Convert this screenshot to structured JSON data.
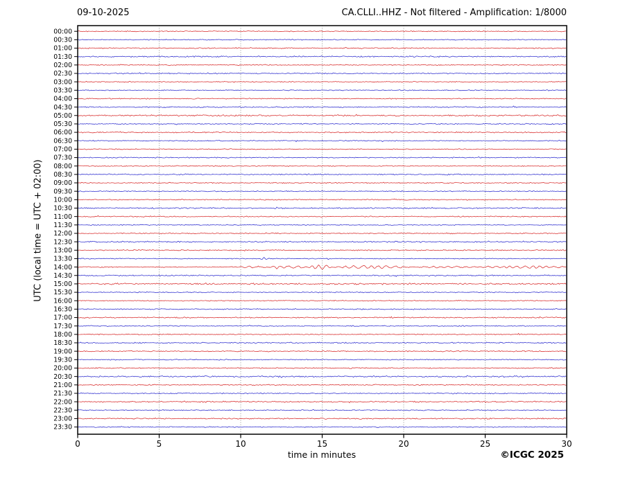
{
  "header": {
    "date": "09-10-2025",
    "title": "CA.CLLI..HHZ - Not filtered - Amplification: 1/8000"
  },
  "footer": {
    "copyright": "©ICGC 2025"
  },
  "axes": {
    "y_label": "UTC (local time = UTC + 02:00)",
    "x_label": "time in minutes",
    "x_ticks": [
      0,
      5,
      10,
      15,
      20,
      25,
      30
    ],
    "x_range": [
      0,
      30
    ],
    "gridlines_minutes": [
      5,
      10,
      15,
      20,
      25
    ],
    "grid_style": "dotted"
  },
  "chart_data": {
    "type": "line",
    "title": "CA.CLLI..HHZ - Not filtered - Amplification: 1/8000",
    "subtitle_date": "09-10-2025",
    "xlabel": "time in minutes",
    "ylabel": "UTC (local time = UTC + 02:00)",
    "x_range_minutes": [
      0,
      30
    ],
    "row_interval_minutes": 30,
    "legend": "none",
    "trace_colors": {
      "red": "#d62020",
      "blue": "#2222cc"
    },
    "grid_color": "#888888",
    "rows": [
      {
        "label": "00:00",
        "color": "red",
        "noise": 0.7
      },
      {
        "label": "00:30",
        "color": "blue",
        "noise": 0.7
      },
      {
        "label": "01:00",
        "color": "red",
        "noise": 0.9
      },
      {
        "label": "01:30",
        "color": "blue",
        "noise": 1.0
      },
      {
        "label": "02:00",
        "color": "red",
        "noise": 0.75
      },
      {
        "label": "02:30",
        "color": "blue",
        "noise": 0.9
      },
      {
        "label": "03:00",
        "color": "red",
        "noise": 0.7
      },
      {
        "label": "03:30",
        "color": "blue",
        "noise": 0.7
      },
      {
        "label": "04:00",
        "color": "red",
        "noise": 0.75
      },
      {
        "label": "04:30",
        "color": "blue",
        "noise": 0.9
      },
      {
        "label": "05:00",
        "color": "red",
        "noise": 1.1
      },
      {
        "label": "05:30",
        "color": "blue",
        "noise": 0.8
      },
      {
        "label": "06:00",
        "color": "red",
        "noise": 0.9
      },
      {
        "label": "06:30",
        "color": "blue",
        "noise": 0.75
      },
      {
        "label": "07:00",
        "color": "red",
        "noise": 0.7
      },
      {
        "label": "07:30",
        "color": "blue",
        "noise": 0.8
      },
      {
        "label": "08:00",
        "color": "red",
        "noise": 0.75
      },
      {
        "label": "08:30",
        "color": "blue",
        "noise": 0.9
      },
      {
        "label": "09:00",
        "color": "red",
        "noise": 0.8
      },
      {
        "label": "09:30",
        "color": "blue",
        "noise": 0.7
      },
      {
        "label": "10:00",
        "color": "red",
        "noise": 0.75
      },
      {
        "label": "10:30",
        "color": "blue",
        "noise": 1.0
      },
      {
        "label": "11:00",
        "color": "red",
        "noise": 0.8
      },
      {
        "label": "11:30",
        "color": "blue",
        "noise": 0.7
      },
      {
        "label": "12:00",
        "color": "red",
        "noise": 0.75
      },
      {
        "label": "12:30",
        "color": "blue",
        "noise": 1.0
      },
      {
        "label": "13:00",
        "color": "red",
        "noise": 0.8
      },
      {
        "label": "13:30",
        "color": "blue",
        "noise": 0.7,
        "events": [
          {
            "start": 11.2,
            "end": 11.8,
            "amp": 1.7,
            "period": 0.28
          }
        ]
      },
      {
        "label": "14:00",
        "color": "red",
        "noise": 0.7,
        "events": [
          {
            "start": 9.6,
            "end": 11.6,
            "amp": 1.1,
            "period": 0.55
          },
          {
            "start": 11.6,
            "end": 14.1,
            "amp": 1.7,
            "period": 0.5
          },
          {
            "start": 14.1,
            "end": 15.6,
            "amp": 3.0,
            "period": 0.42
          },
          {
            "start": 15.6,
            "end": 20.4,
            "amp": 2.0,
            "period": 0.5
          },
          {
            "start": 20.4,
            "end": 24.4,
            "amp": 0.9,
            "period": 0.5
          },
          {
            "start": 24.4,
            "end": 30.0,
            "amp": 1.5,
            "period": 0.45
          }
        ]
      },
      {
        "label": "14:30",
        "color": "blue",
        "noise": 0.95
      },
      {
        "label": "15:00",
        "color": "red",
        "noise": 1.15
      },
      {
        "label": "15:30",
        "color": "blue",
        "noise": 0.75
      },
      {
        "label": "16:00",
        "color": "red",
        "noise": 0.75
      },
      {
        "label": "16:30",
        "color": "blue",
        "noise": 0.8
      },
      {
        "label": "17:00",
        "color": "red",
        "noise": 0.9
      },
      {
        "label": "17:30",
        "color": "blue",
        "noise": 0.8
      },
      {
        "label": "18:00",
        "color": "red",
        "noise": 0.75
      },
      {
        "label": "18:30",
        "color": "blue",
        "noise": 0.9
      },
      {
        "label": "19:00",
        "color": "red",
        "noise": 0.85
      },
      {
        "label": "19:30",
        "color": "blue",
        "noise": 0.75
      },
      {
        "label": "20:00",
        "color": "red",
        "noise": 0.8
      },
      {
        "label": "20:30",
        "color": "blue",
        "noise": 1.1
      },
      {
        "label": "21:00",
        "color": "red",
        "noise": 0.85
      },
      {
        "label": "21:30",
        "color": "blue",
        "noise": 0.8
      },
      {
        "label": "22:00",
        "color": "red",
        "noise": 1.0
      },
      {
        "label": "22:30",
        "color": "blue",
        "noise": 0.8
      },
      {
        "label": "23:00",
        "color": "red",
        "noise": 0.95
      },
      {
        "label": "23:30",
        "color": "blue",
        "noise": 0.8
      }
    ]
  }
}
